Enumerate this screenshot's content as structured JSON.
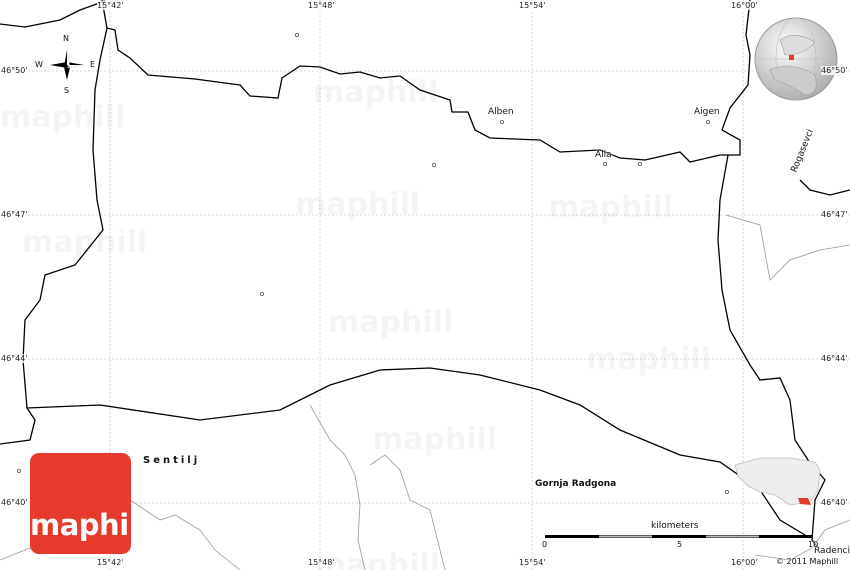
{
  "map": {
    "watermark": "maphill",
    "logo": {
      "text": "maphill",
      "color": "#e63a2c"
    },
    "compass": {
      "n": "N",
      "s": "S",
      "e": "E",
      "w": "W"
    },
    "longitudes": {
      "top": [
        "15°42'",
        "15°48'",
        "15°54'",
        "16°00'"
      ],
      "bottom": [
        "15°42'",
        "15°48'",
        "15°54'",
        "16°00'"
      ]
    },
    "latitudes": {
      "left": [
        "46°50'",
        "46°47'",
        "46°44'",
        "46°40'"
      ],
      "right": [
        "46°50'",
        "46°47'",
        "46°44'",
        "46°40'"
      ]
    },
    "places": {
      "alben": "Alben",
      "alla": "Alla",
      "aigen": "Aigen",
      "rogasevci": "Rogasevci",
      "sentilj": "Sentilj",
      "gornja_radgona": "Gornja Radgona",
      "radenci": "Radenci"
    },
    "scale": {
      "unit": "kilometers",
      "ticks": [
        "0",
        "5",
        "10"
      ]
    },
    "copyright": "© 2011 Maphill",
    "highlight_color": "#e63a2c"
  }
}
